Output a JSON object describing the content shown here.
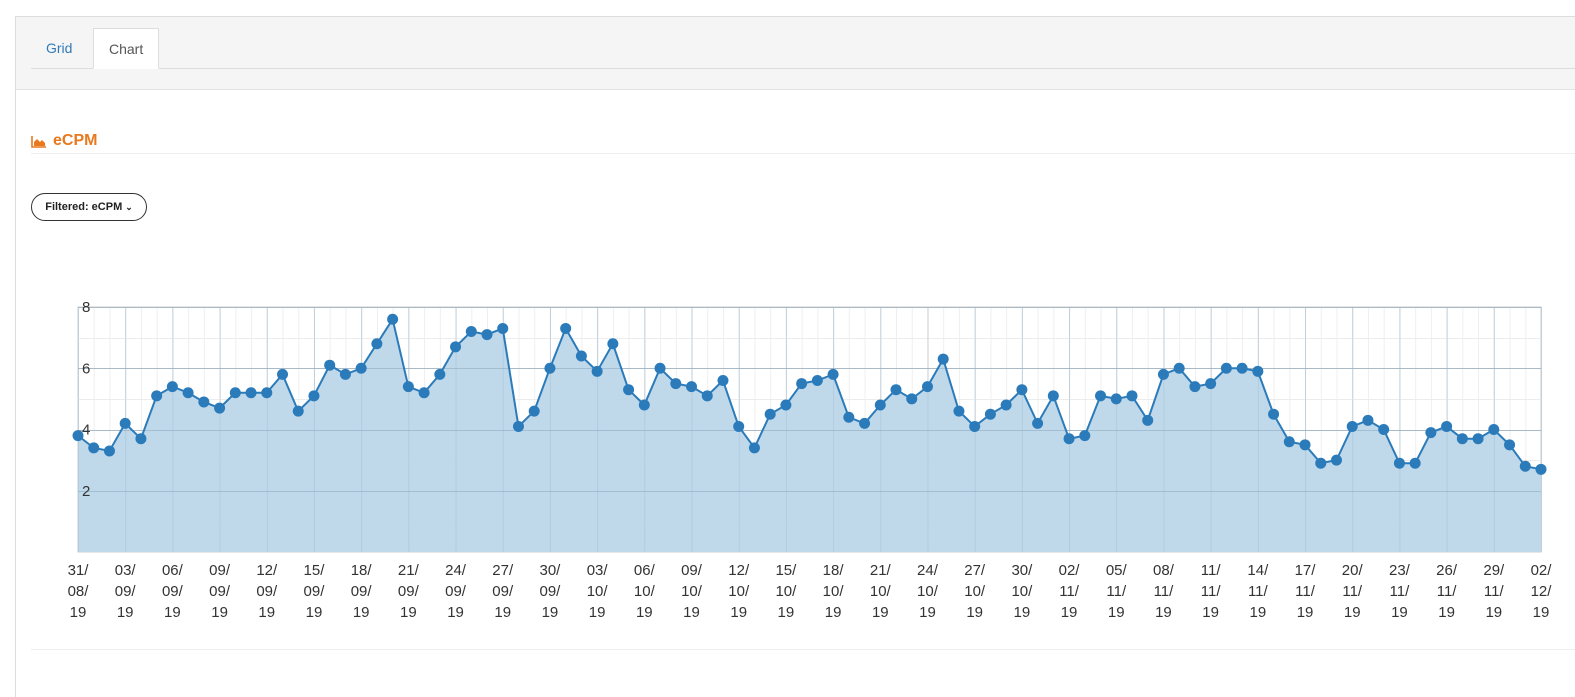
{
  "tabs": {
    "grid_label": "Grid",
    "chart_label": "Chart"
  },
  "section": {
    "title": "eCPM",
    "icon": "area-chart-icon"
  },
  "filter": {
    "label": "Filtered: eCPM"
  },
  "colors": {
    "accent": "#e8791f",
    "line": "#2b7bba",
    "fill": "#bcd7ea",
    "link": "#337ab7"
  },
  "chart_data": {
    "type": "area",
    "title": "",
    "xlabel": "",
    "ylabel": "",
    "ylim": [
      0,
      8
    ],
    "yticks": [
      2,
      4,
      6,
      8
    ],
    "grid": true,
    "tick_labels": [
      [
        "31/",
        "08/",
        "19"
      ],
      [
        "03/",
        "09/",
        "19"
      ],
      [
        "06/",
        "09/",
        "19"
      ],
      [
        "09/",
        "09/",
        "19"
      ],
      [
        "12/",
        "09/",
        "19"
      ],
      [
        "15/",
        "09/",
        "19"
      ],
      [
        "18/",
        "09/",
        "19"
      ],
      [
        "21/",
        "09/",
        "19"
      ],
      [
        "24/",
        "09/",
        "19"
      ],
      [
        "27/",
        "09/",
        "19"
      ],
      [
        "30/",
        "09/",
        "19"
      ],
      [
        "03/",
        "10/",
        "19"
      ],
      [
        "06/",
        "10/",
        "19"
      ],
      [
        "09/",
        "10/",
        "19"
      ],
      [
        "12/",
        "10/",
        "19"
      ],
      [
        "15/",
        "10/",
        "19"
      ],
      [
        "18/",
        "10/",
        "19"
      ],
      [
        "21/",
        "10/",
        "19"
      ],
      [
        "24/",
        "10/",
        "19"
      ],
      [
        "27/",
        "10/",
        "19"
      ],
      [
        "30/",
        "10/",
        "19"
      ],
      [
        "02/",
        "11/",
        "19"
      ],
      [
        "05/",
        "11/",
        "19"
      ],
      [
        "08/",
        "11/",
        "19"
      ],
      [
        "11/",
        "11/",
        "19"
      ],
      [
        "14/",
        "11/",
        "19"
      ],
      [
        "17/",
        "11/",
        "19"
      ],
      [
        "20/",
        "11/",
        "19"
      ],
      [
        "23/",
        "11/",
        "19"
      ],
      [
        "26/",
        "11/",
        "19"
      ],
      [
        "29/",
        "11/",
        "19"
      ],
      [
        "02/",
        "12/",
        "19"
      ]
    ],
    "x_start": "2019-08-31",
    "x_end": "2019-12-02",
    "series": [
      {
        "name": "eCPM",
        "values": [
          3.8,
          3.4,
          3.3,
          4.2,
          3.7,
          5.1,
          5.4,
          5.2,
          4.9,
          4.7,
          5.2,
          5.2,
          5.2,
          5.8,
          4.6,
          5.1,
          6.1,
          5.8,
          6.0,
          6.8,
          7.6,
          5.4,
          5.2,
          5.8,
          6.7,
          7.2,
          7.1,
          7.3,
          4.1,
          4.6,
          6.0,
          7.3,
          6.4,
          5.9,
          6.8,
          5.3,
          4.8,
          6.0,
          5.5,
          5.4,
          5.1,
          5.6,
          4.1,
          3.4,
          4.5,
          4.8,
          5.5,
          5.6,
          5.8,
          4.4,
          4.2,
          4.8,
          5.3,
          5.0,
          5.4,
          6.3,
          4.6,
          4.1,
          4.5,
          4.8,
          5.3,
          4.2,
          5.1,
          3.7,
          3.8,
          5.1,
          5.0,
          5.1,
          4.3,
          5.8,
          6.0,
          5.4,
          5.5,
          6.0,
          6.0,
          5.9,
          4.5,
          3.6,
          3.5,
          2.9,
          3.0,
          4.1,
          4.3,
          4.0,
          2.9,
          2.9,
          3.9,
          4.1,
          3.7,
          3.7,
          4.0,
          3.5,
          2.8,
          2.7
        ]
      }
    ]
  }
}
